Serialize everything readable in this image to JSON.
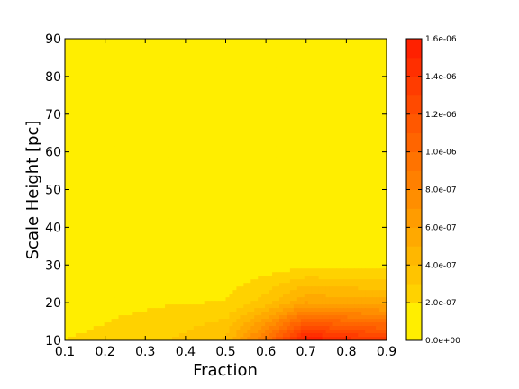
{
  "chart_data": {
    "type": "heatmap",
    "subtype": "filled-contour",
    "title": "",
    "xlabel": "Fraction",
    "ylabel": "Scale Height [pc]",
    "xlim": [
      0.1,
      0.9
    ],
    "ylim": [
      10,
      90
    ],
    "xticks": [
      "0.1",
      "0.2",
      "0.3",
      "0.4",
      "0.5",
      "0.6",
      "0.7",
      "0.8",
      "0.9"
    ],
    "yticks": [
      "10",
      "20",
      "30",
      "40",
      "50",
      "60",
      "70",
      "80",
      "90"
    ],
    "x": [
      0.1,
      0.2,
      0.3,
      0.4,
      0.5,
      0.6,
      0.7,
      0.8,
      0.9
    ],
    "y": [
      10,
      20,
      30,
      40,
      50,
      60,
      70,
      80,
      90
    ],
    "z": [
      [
        2e-07,
        2.2e-07,
        2.6e-07,
        3.3e-07,
        4.2e-07,
        9.5e-07,
        1.6e-06,
        1.45e-06,
        1.35e-06
      ],
      [
        1.6e-07,
        1.75e-07,
        1.85e-07,
        1.95e-07,
        2.05e-07,
        3.5e-07,
        6e-07,
        5.6e-07,
        5.4e-07
      ],
      [
        1e-07,
        1.05e-07,
        1.1e-07,
        1.15e-07,
        1.2e-07,
        1.4e-07,
        1.6e-07,
        1.5e-07,
        1.5e-07
      ],
      [
        6e-08,
        6e-08,
        6e-08,
        6e-08,
        6e-08,
        6e-08,
        6e-08,
        6e-08,
        6e-08
      ],
      [
        4e-08,
        4e-08,
        4e-08,
        4e-08,
        4e-08,
        4e-08,
        4e-08,
        4e-08,
        4e-08
      ],
      [
        3e-08,
        3e-08,
        3e-08,
        3e-08,
        3e-08,
        3e-08,
        3e-08,
        3e-08,
        3e-08
      ],
      [
        2e-08,
        2e-08,
        2e-08,
        2e-08,
        2e-08,
        2e-08,
        2e-08,
        2e-08,
        2e-08
      ],
      [
        1e-08,
        1e-08,
        1e-08,
        1e-08,
        1e-08,
        1e-08,
        1e-08,
        1e-08,
        1e-08
      ],
      [
        1e-08,
        1e-08,
        1e-08,
        1e-08,
        1e-08,
        1e-08,
        1e-08,
        1e-08,
        1e-08
      ]
    ],
    "colorbar": {
      "min": 0,
      "max": 1.6e-06,
      "levels": [
        0,
        2e-07,
        3e-07,
        4e-07,
        5e-07,
        6e-07,
        7e-07,
        8e-07,
        9e-07,
        1e-06,
        1.1e-06,
        1.2e-06,
        1.3e-06,
        1.4e-06,
        1.5e-06,
        1.6e-06
      ],
      "colors": [
        "#ffee00",
        "#ffd200",
        "#ffc400",
        "#ffb700",
        "#ffa900",
        "#ff9c00",
        "#ff8e00",
        "#ff8000",
        "#ff7300",
        "#ff6500",
        "#ff5800",
        "#ff4a00",
        "#ff3c00",
        "#ff2f00",
        "#ff2100"
      ],
      "tick_values": [
        0,
        2e-07,
        4e-07,
        6e-07,
        8e-07,
        1e-06,
        1.2e-06,
        1.4e-06,
        1.6e-06
      ],
      "tick_labels": [
        "0.0e+00",
        "2.0e-07",
        "4.0e-07",
        "6.0e-07",
        "8.0e-07",
        "1.0e-06",
        "1.2e-06",
        "1.4e-06",
        "1.6e-06"
      ]
    },
    "grid": false,
    "legend": "none"
  }
}
